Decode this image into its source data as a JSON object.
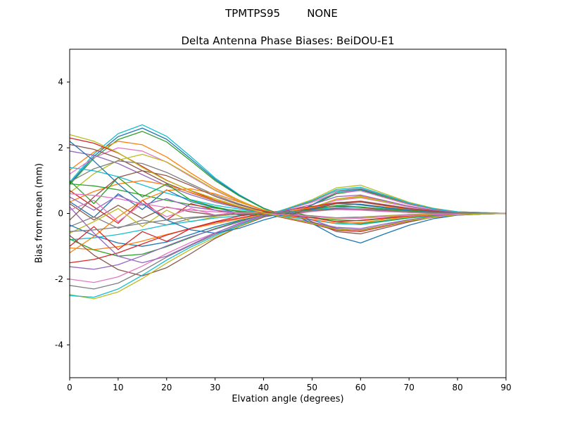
{
  "chart_data": {
    "type": "line",
    "suptitle": "TPMTPS95        NONE",
    "title": "Delta Antenna Phase Biases: BeiDOU-E1",
    "xlabel": "Elvation angle (degrees)",
    "ylabel": "Bias from mean (mm)",
    "xlim": [
      0,
      90
    ],
    "ylim": [
      -5,
      5
    ],
    "x_ticks": [
      0,
      10,
      20,
      30,
      40,
      50,
      60,
      70,
      80,
      90
    ],
    "y_ticks": [
      -4,
      -2,
      0,
      2,
      4
    ],
    "grid": false,
    "legend": "none",
    "x": [
      0,
      5,
      10,
      15,
      20,
      25,
      30,
      35,
      40,
      45,
      50,
      55,
      60,
      65,
      70,
      75,
      80,
      85,
      90
    ],
    "series": [
      {
        "color": "#17becf",
        "values": [
          0.95,
          1.81,
          2.43,
          2.7,
          2.35,
          1.73,
          1.08,
          0.57,
          0.16,
          -0.11,
          0.27,
          0.65,
          0.76,
          0.54,
          0.32,
          0.14,
          0.05,
          0.03,
          0
        ]
      },
      {
        "color": "#1f77b4",
        "values": [
          0.91,
          1.74,
          2.34,
          2.6,
          2.26,
          1.66,
          1.04,
          0.55,
          0.16,
          -0.1,
          0.26,
          0.62,
          0.73,
          0.52,
          0.31,
          0.13,
          0.05,
          0.03,
          0
        ]
      },
      {
        "color": "#2ca02c",
        "values": [
          0.88,
          1.68,
          2.25,
          2.5,
          2.18,
          1.6,
          1.0,
          0.53,
          0.15,
          -0.1,
          0.25,
          0.6,
          0.7,
          0.5,
          0.3,
          0.13,
          0.05,
          0.02,
          0
        ]
      },
      {
        "color": "#ff7f0e",
        "values": [
          1.32,
          1.87,
          2.2,
          2.09,
          1.72,
          1.23,
          0.77,
          0.4,
          0.09,
          -0.13,
          0.18,
          0.44,
          0.53,
          0.37,
          0.22,
          0.09,
          0.02,
          0.01,
          0
        ]
      },
      {
        "color": "#e377c2",
        "values": [
          1.2,
          1.7,
          2.0,
          1.9,
          1.56,
          1.12,
          0.7,
          0.36,
          0.08,
          -0.12,
          0.16,
          0.4,
          0.48,
          0.34,
          0.2,
          0.08,
          0.02,
          0.01,
          0
        ]
      },
      {
        "color": "#d62728",
        "values": [
          2.3,
          2.14,
          1.84,
          1.43,
          1.01,
          0.69,
          0.41,
          0.21,
          0.0,
          -0.16,
          -0.32,
          -0.51,
          -0.55,
          -0.39,
          -0.23,
          -0.12,
          -0.05,
          -0.02,
          0
        ]
      },
      {
        "color": "#8c564b",
        "values": [
          2.1,
          1.95,
          1.68,
          1.3,
          0.92,
          0.63,
          0.38,
          0.19,
          0.0,
          -0.15,
          -0.29,
          -0.46,
          -0.5,
          -0.36,
          -0.21,
          -0.11,
          -0.04,
          -0.02,
          0
        ]
      },
      {
        "color": "#9467bd",
        "values": [
          1.9,
          1.77,
          1.52,
          1.18,
          0.84,
          0.57,
          0.34,
          0.17,
          0.0,
          -0.13,
          -0.27,
          -0.42,
          -0.46,
          -0.32,
          -0.19,
          -0.1,
          -0.04,
          -0.02,
          0
        ]
      },
      {
        "color": "#bcbd22",
        "values": [
          0.63,
          1.21,
          1.62,
          1.8,
          1.57,
          1.15,
          0.72,
          0.38,
          0.11,
          -0.07,
          0.18,
          0.43,
          0.5,
          0.36,
          0.22,
          0.09,
          0.04,
          0.02,
          0
        ]
      },
      {
        "color": "#7f7f7f",
        "values": [
          0.96,
          1.36,
          1.6,
          1.52,
          1.25,
          0.9,
          0.56,
          0.29,
          0.06,
          -0.1,
          0.13,
          0.32,
          0.38,
          0.27,
          0.16,
          0.06,
          0.02,
          0.01,
          0
        ]
      },
      {
        "color": "#17becf",
        "values": [
          1.4,
          1.3,
          1.12,
          0.87,
          0.62,
          0.42,
          0.25,
          0.13,
          0.0,
          -0.1,
          -0.2,
          -0.31,
          -0.34,
          -0.24,
          -0.14,
          -0.07,
          -0.03,
          -0.01,
          0
        ]
      },
      {
        "color": "#1f77b4",
        "values": [
          0.36,
          -0.12,
          0.6,
          0.12,
          0.72,
          0.36,
          0.18,
          0.0,
          -0.1,
          0.0,
          0.14,
          0.31,
          0.26,
          0.17,
          0.08,
          0.04,
          0.01,
          0.01,
          0
        ]
      },
      {
        "color": "#ff7f0e",
        "values": [
          0.35,
          0.67,
          0.9,
          1.0,
          0.87,
          0.64,
          0.4,
          0.21,
          0.06,
          -0.04,
          0.1,
          0.24,
          0.28,
          0.2,
          0.12,
          0.05,
          0.02,
          0.01,
          0
        ]
      },
      {
        "color": "#2ca02c",
        "values": [
          0.9,
          0.84,
          0.72,
          0.56,
          0.4,
          0.27,
          0.16,
          0.08,
          0.0,
          -0.06,
          -0.13,
          -0.2,
          -0.22,
          -0.15,
          -0.09,
          -0.05,
          -0.02,
          -0.01,
          0
        ]
      },
      {
        "color": "#d62728",
        "values": [
          0.7,
          0.2,
          -0.3,
          0.4,
          -0.2,
          0.3,
          0.1,
          -0.05,
          0.02,
          0.08,
          0.15,
          0.22,
          0.18,
          0.12,
          0.06,
          0.02,
          0.01,
          0,
          0
        ]
      },
      {
        "color": "#9467bd",
        "values": [
          0.5,
          0.1,
          0.55,
          0.25,
          0.45,
          0.2,
          0.1,
          0.02,
          -0.04,
          0.02,
          0.08,
          0.16,
          0.13,
          0.08,
          0.04,
          0.02,
          0.01,
          0,
          0
        ]
      },
      {
        "color": "#8c564b",
        "values": [
          0.3,
          -0.2,
          0.25,
          -0.15,
          0.2,
          0.05,
          -0.05,
          0.03,
          0.0,
          0.05,
          0.1,
          0.14,
          0.11,
          0.07,
          0.03,
          0.01,
          0,
          0,
          0
        ]
      },
      {
        "color": "#e377c2",
        "values": [
          0.1,
          0.4,
          -0.25,
          0.3,
          -0.1,
          0.15,
          -0.05,
          0.05,
          0.0,
          -0.05,
          0.06,
          0.12,
          0.1,
          0.06,
          0.03,
          0.01,
          0,
          0,
          0
        ]
      },
      {
        "color": "#7f7f7f",
        "values": [
          -0.4,
          -0.1,
          -0.45,
          -0.2,
          -0.35,
          -0.15,
          -0.08,
          -0.02,
          0.03,
          -0.02,
          -0.07,
          -0.13,
          -0.11,
          -0.07,
          -0.03,
          -0.01,
          0,
          0,
          0
        ]
      },
      {
        "color": "#bcbd22",
        "values": [
          -0.6,
          -0.25,
          0.15,
          -0.4,
          0.1,
          -0.25,
          -0.1,
          0.0,
          0.04,
          -0.03,
          -0.09,
          -0.16,
          -0.13,
          -0.08,
          -0.04,
          -0.02,
          -0.01,
          0,
          0
        ]
      },
      {
        "color": "#17becf",
        "values": [
          -0.8,
          -0.74,
          -0.64,
          -0.5,
          -0.35,
          -0.24,
          -0.14,
          -0.07,
          0.0,
          0.06,
          0.11,
          0.18,
          0.19,
          0.14,
          0.08,
          0.04,
          0.02,
          0.01,
          0
        ]
      },
      {
        "color": "#1f77b4",
        "values": [
          -0.35,
          -0.67,
          -0.9,
          -1.0,
          -0.87,
          -0.64,
          -0.4,
          -0.21,
          -0.06,
          0.04,
          -0.3,
          -0.7,
          -0.9,
          -0.62,
          -0.36,
          -0.16,
          -0.05,
          -0.02,
          0
        ]
      },
      {
        "color": "#ff7f0e",
        "values": [
          -1.05,
          -1.1,
          -1.01,
          -0.84,
          -0.64,
          -0.46,
          -0.31,
          -0.17,
          -0.03,
          0.07,
          0.18,
          0.33,
          0.36,
          0.25,
          0.14,
          0.07,
          0.02,
          0.01,
          0
        ]
      },
      {
        "color": "#2ca02c",
        "values": [
          -0.78,
          -1.11,
          -1.3,
          -1.24,
          -1.01,
          -0.73,
          -0.46,
          -0.23,
          -0.05,
          0.08,
          -0.1,
          -0.26,
          -0.31,
          -0.22,
          -0.13,
          -0.05,
          -0.01,
          -0.01,
          0
        ]
      },
      {
        "color": "#d62728",
        "values": [
          -1.5,
          -1.4,
          -1.2,
          -0.93,
          -0.66,
          -0.45,
          -0.27,
          -0.14,
          0.0,
          0.11,
          0.21,
          0.33,
          0.36,
          0.26,
          0.15,
          0.08,
          0.03,
          0.01,
          0
        ]
      },
      {
        "color": "#9467bd",
        "values": [
          -1.62,
          -1.7,
          -1.56,
          -1.29,
          -0.99,
          -0.71,
          -0.48,
          -0.26,
          -0.05,
          0.1,
          0.27,
          0.51,
          0.56,
          0.39,
          0.22,
          0.1,
          0.03,
          0.02,
          0
        ]
      },
      {
        "color": "#8c564b",
        "values": [
          -0.67,
          -1.27,
          -1.71,
          -1.9,
          -1.65,
          -1.22,
          -0.76,
          -0.4,
          -0.11,
          0.08,
          -0.25,
          -0.55,
          -0.62,
          -0.44,
          -0.26,
          -0.11,
          -0.04,
          -0.02,
          0
        ]
      },
      {
        "color": "#e377c2",
        "values": [
          -2.0,
          -2.1,
          -1.93,
          -1.6,
          -1.22,
          -0.88,
          -0.59,
          -0.32,
          -0.06,
          0.13,
          0.34,
          0.63,
          0.69,
          0.48,
          0.27,
          0.13,
          0.04,
          0.02,
          0
        ]
      },
      {
        "color": "#7f7f7f",
        "values": [
          -2.19,
          -2.3,
          -2.12,
          -1.75,
          -1.33,
          -0.97,
          -0.64,
          -0.35,
          -0.07,
          0.14,
          0.37,
          0.69,
          0.76,
          0.53,
          0.3,
          0.14,
          0.05,
          0.02,
          0
        ]
      },
      {
        "color": "#bcbd22",
        "values": [
          -2.47,
          -2.6,
          -2.39,
          -1.98,
          -1.51,
          -1.09,
          -0.73,
          -0.39,
          -0.08,
          0.16,
          0.42,
          0.78,
          0.86,
          0.6,
          0.34,
          0.16,
          0.05,
          0.03,
          0
        ]
      },
      {
        "color": "#17becf",
        "values": [
          -2.5,
          -2.55,
          -2.3,
          -1.88,
          -1.42,
          -1.02,
          -0.68,
          -0.36,
          -0.07,
          0.15,
          0.39,
          0.73,
          0.8,
          0.56,
          0.32,
          0.15,
          0.05,
          0.02,
          0
        ]
      },
      {
        "color": "#1f77b4",
        "values": [
          2.2,
          1.6,
          0.9,
          0.3,
          -0.2,
          -0.5,
          -0.6,
          -0.45,
          -0.2,
          0.0,
          0.15,
          0.3,
          0.28,
          0.18,
          0.1,
          0.04,
          0.01,
          0,
          0
        ]
      },
      {
        "color": "#ff7f0e",
        "values": [
          -1.2,
          -0.7,
          -0.1,
          0.4,
          0.7,
          0.75,
          0.6,
          0.35,
          0.1,
          -0.08,
          -0.18,
          -0.3,
          -0.28,
          -0.18,
          -0.1,
          -0.04,
          -0.01,
          0,
          0
        ]
      },
      {
        "color": "#2ca02c",
        "values": [
          1.0,
          0.3,
          1.1,
          0.5,
          0.9,
          0.4,
          0.2,
          0.05,
          -0.05,
          0.03,
          0.12,
          0.24,
          0.2,
          0.13,
          0.07,
          0.03,
          0.01,
          0,
          0
        ]
      },
      {
        "color": "#d62728",
        "values": [
          -1.0,
          -0.4,
          -1.1,
          -0.55,
          -0.85,
          -0.45,
          -0.25,
          -0.08,
          0.04,
          -0.04,
          -0.13,
          -0.25,
          -0.21,
          -0.14,
          -0.07,
          -0.03,
          -0.01,
          0,
          0
        ]
      },
      {
        "color": "#9467bd",
        "values": [
          0.2,
          -0.6,
          -1.3,
          -1.5,
          -1.3,
          -0.95,
          -0.6,
          -0.3,
          -0.08,
          0.06,
          -0.2,
          -0.45,
          -0.52,
          -0.36,
          -0.2,
          -0.08,
          -0.02,
          -0.01,
          0
        ]
      },
      {
        "color": "#8c564b",
        "values": [
          -0.2,
          0.5,
          1.1,
          1.3,
          1.15,
          0.85,
          0.52,
          0.26,
          0.07,
          -0.05,
          0.12,
          0.3,
          0.35,
          0.24,
          0.14,
          0.06,
          0.02,
          0.01,
          0
        ]
      },
      {
        "color": "#e377c2",
        "values": [
          0.6,
          0.55,
          0.45,
          0.3,
          0.18,
          0.1,
          0.05,
          0.02,
          0.0,
          -0.04,
          -0.09,
          -0.14,
          -0.15,
          -0.1,
          -0.06,
          -0.03,
          -0.01,
          0,
          0
        ]
      },
      {
        "color": "#7f7f7f",
        "values": [
          -0.55,
          -0.5,
          -0.42,
          -0.3,
          -0.2,
          -0.12,
          -0.06,
          -0.02,
          0.0,
          0.04,
          0.08,
          0.13,
          0.14,
          0.1,
          0.05,
          0.02,
          0.01,
          0,
          0
        ]
      },
      {
        "color": "#bcbd22",
        "values": [
          2.4,
          2.2,
          1.85,
          1.4,
          1.0,
          0.7,
          0.45,
          0.22,
          0.02,
          -0.14,
          -0.3,
          -0.48,
          -0.52,
          -0.37,
          -0.22,
          -0.11,
          -0.04,
          -0.01,
          0
        ]
      }
    ]
  }
}
